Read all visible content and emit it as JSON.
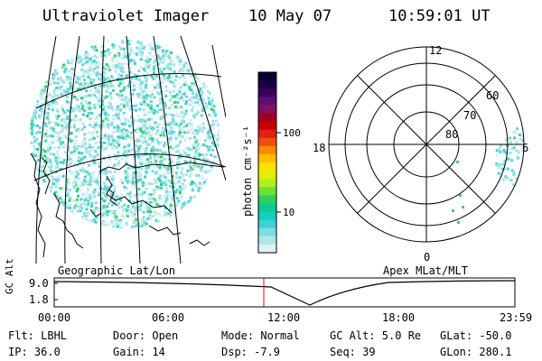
{
  "header": {
    "title": "Ultraviolet Imager",
    "date": "10 May 07",
    "time": "10:59:01 UT"
  },
  "colorbar": {
    "unit_label": "photon cm⁻²s⁻¹",
    "ticks": [
      "100",
      "10"
    ],
    "colors": [
      "#000033",
      "#1a0040",
      "#3a0060",
      "#5a1070",
      "#801060",
      "#a00020",
      "#c80000",
      "#e02010",
      "#ee5010",
      "#ff8a00",
      "#ffbe00",
      "#ffe000",
      "#e0f000",
      "#b0f020",
      "#70e030",
      "#30d060",
      "#10c890",
      "#10d0c0",
      "#40d0d8",
      "#80dce0",
      "#b0e6ea",
      "#dff2f4"
    ]
  },
  "polar": {
    "labels": {
      "top": "12",
      "left": "18",
      "right": "6",
      "bottom": "0"
    },
    "ring_labels": [
      "60",
      "70",
      "80"
    ]
  },
  "plot_labels": {
    "left": "Geographic Lat/Lon",
    "right": "Apex MLat/MLT"
  },
  "altitude_plot": {
    "ylabel": "GC Alt",
    "yticks": [
      "9.0",
      "1.8"
    ],
    "xticks": [
      "00:00",
      "06:00",
      "12:00",
      "18:00",
      "23:59"
    ],
    "line_color": "#ff0000"
  },
  "status": {
    "flt": "Flt: LBHL",
    "ip": "IP: 36.0",
    "door": "Door: Open",
    "gain": "Gain: 14",
    "mode": "Mode: Normal",
    "dsp": "Dsp:   -7.9",
    "gc_alt": "GC Alt: 5.0 Re",
    "seq": "Seq: 39",
    "glat": "GLat: -50.0",
    "glon": "GLon: 280.1"
  }
}
